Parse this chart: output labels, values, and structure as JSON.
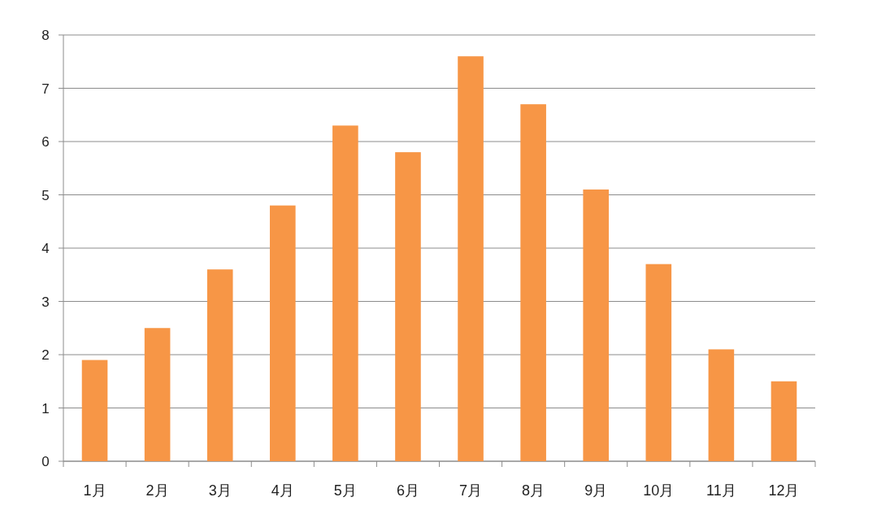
{
  "chart_data": {
    "type": "bar",
    "categories": [
      "1月",
      "2月",
      "3月",
      "4月",
      "5月",
      "6月",
      "7月",
      "8月",
      "9月",
      "10月",
      "11月",
      "12月"
    ],
    "values": [
      1.9,
      2.5,
      3.6,
      4.8,
      6.3,
      5.8,
      7.6,
      6.7,
      5.1,
      3.7,
      2.1,
      1.5
    ],
    "color": "#f79646",
    "ylim": [
      0,
      8
    ],
    "yticks": [
      0,
      1,
      2,
      3,
      4,
      5,
      6,
      7,
      8
    ],
    "grid": "y"
  }
}
